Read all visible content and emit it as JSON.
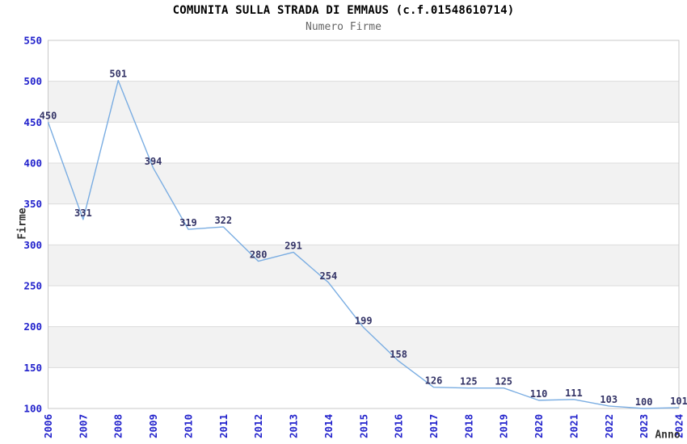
{
  "title": "COMUNITA SULLA STRADA DI EMMAUS (c.f.01548610714)",
  "subtitle": "Numero Firme",
  "colors": {
    "line": "#7aade2",
    "band": "#f2f2f2",
    "grid": "#dcdcdc",
    "border": "#c9c9c9",
    "tick_label": "#2222cc",
    "data_label": "#333366",
    "title_text": "#000000",
    "subtitle_text": "#666666",
    "axis_title_text": "#333333",
    "background": "#ffffff"
  },
  "chart_data": {
    "type": "line",
    "title": "COMUNITA SULLA STRADA DI EMMAUS (c.f.01548610714)",
    "subtitle": "Numero Firme",
    "xlabel": "Anno",
    "ylabel": "Firme",
    "x": [
      2006,
      2007,
      2008,
      2009,
      2010,
      2011,
      2012,
      2013,
      2014,
      2015,
      2016,
      2017,
      2018,
      2019,
      2020,
      2021,
      2022,
      2023,
      2024
    ],
    "series": [
      {
        "name": "Numero Firme",
        "values": [
          450,
          331,
          501,
          394,
          319,
          322,
          280,
          291,
          254,
          199,
          158,
          126,
          125,
          125,
          110,
          111,
          103,
          100,
          101
        ]
      }
    ],
    "ylim": [
      100,
      550
    ],
    "ytick_step": 50,
    "grid": "horizontal",
    "bands": "alternating gray bands 150-200, 250-300, 350-400, 450-500",
    "legend": "none",
    "point_labels": true
  }
}
